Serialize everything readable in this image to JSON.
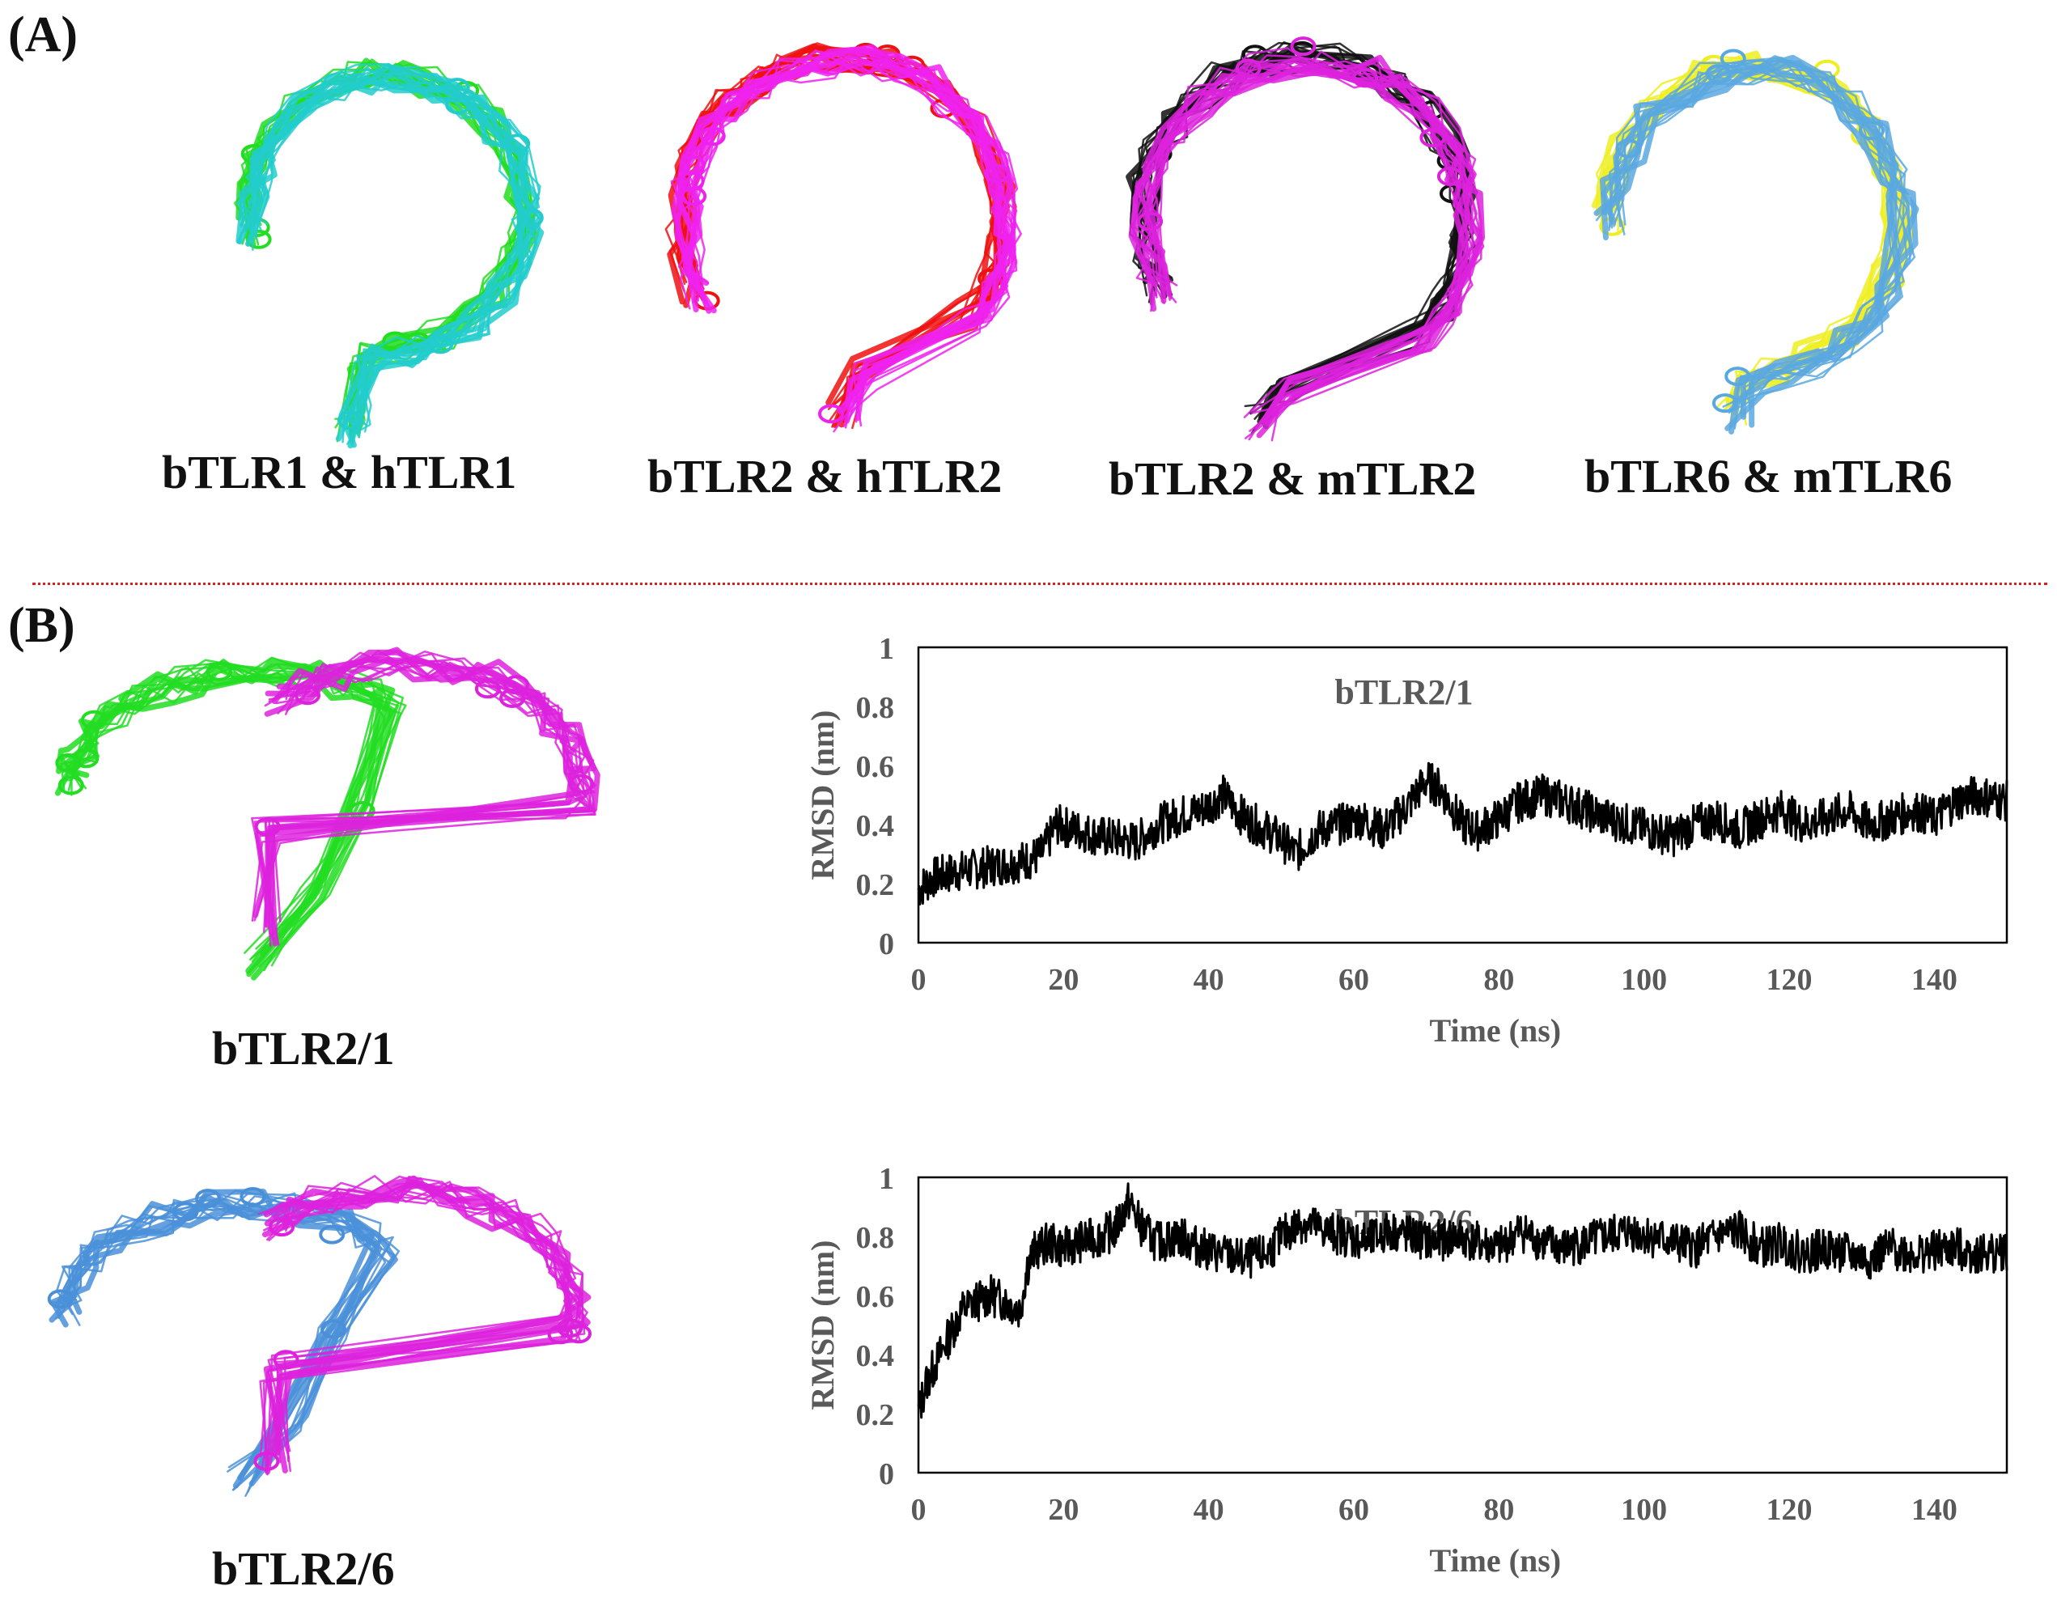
{
  "panels": {
    "a_label": "(A)",
    "b_label": "(B)"
  },
  "panel_a": {
    "structures": [
      {
        "label": "bTLR1 & hTLR1",
        "colors": [
          "#22dd22",
          "#22cccc"
        ]
      },
      {
        "label": "bTLR2 & hTLR2",
        "colors": [
          "#ee1111",
          "#ee22ee"
        ]
      },
      {
        "label": "bTLR2 & mTLR2",
        "colors": [
          "#111111",
          "#dd22dd"
        ]
      },
      {
        "label": "bTLR6 & mTLR6",
        "colors": [
          "#eeee22",
          "#5aa8e0"
        ]
      }
    ]
  },
  "panel_b": {
    "complexes": [
      {
        "label": "bTLR2/1",
        "colors": [
          "#22dd22",
          "#dd22dd"
        ]
      },
      {
        "label": "bTLR2/6",
        "colors": [
          "#4a90d9",
          "#dd22dd"
        ]
      }
    ]
  },
  "chart_data": [
    {
      "type": "line",
      "title": "bTLR2/1",
      "xlabel": "Time (ns)",
      "ylabel": "RMSD (nm)",
      "xlim": [
        0,
        150
      ],
      "ylim": [
        0,
        1
      ],
      "xticks": [
        0,
        20,
        40,
        60,
        80,
        100,
        120,
        140
      ],
      "yticks": [
        0,
        0.2,
        0.4,
        0.6,
        0.8,
        1
      ],
      "series": [
        {
          "color": "#000000",
          "x": [
            0,
            2,
            5,
            8,
            10,
            13,
            15,
            17,
            19,
            22,
            25,
            28,
            30,
            33,
            36,
            39,
            42,
            45,
            48,
            50,
            52,
            55,
            58,
            61,
            64,
            67,
            70,
            72,
            75,
            77,
            80,
            83,
            86,
            89,
            92,
            95,
            98,
            101,
            104,
            107,
            110,
            113,
            116,
            119,
            122,
            125,
            128,
            131,
            134,
            137,
            140,
            143,
            146,
            150
          ],
          "y": [
            0.18,
            0.22,
            0.24,
            0.25,
            0.26,
            0.27,
            0.28,
            0.3,
            0.4,
            0.38,
            0.36,
            0.35,
            0.34,
            0.4,
            0.43,
            0.45,
            0.5,
            0.42,
            0.38,
            0.35,
            0.3,
            0.38,
            0.4,
            0.42,
            0.38,
            0.45,
            0.55,
            0.52,
            0.4,
            0.38,
            0.42,
            0.48,
            0.5,
            0.48,
            0.45,
            0.42,
            0.4,
            0.38,
            0.36,
            0.4,
            0.42,
            0.38,
            0.42,
            0.45,
            0.4,
            0.42,
            0.45,
            0.4,
            0.42,
            0.45,
            0.42,
            0.48,
            0.5,
            0.48
          ]
        }
      ]
    },
    {
      "type": "line",
      "title": "bTLR2/6",
      "xlabel": "Time (ns)",
      "ylabel": "RMSD (nm)",
      "xlim": [
        0,
        150
      ],
      "ylim": [
        0,
        1
      ],
      "xticks": [
        0,
        20,
        40,
        60,
        80,
        100,
        120,
        140
      ],
      "yticks": [
        0,
        0.2,
        0.4,
        0.6,
        0.8,
        1
      ],
      "series": [
        {
          "color": "#000000",
          "x": [
            0,
            1,
            2,
            3,
            4,
            5,
            6,
            8,
            10,
            12,
            14,
            15,
            16,
            18,
            20,
            22,
            25,
            27,
            29,
            31,
            33,
            36,
            39,
            42,
            45,
            48,
            50,
            53,
            56,
            59,
            62,
            65,
            68,
            71,
            74,
            77,
            80,
            83,
            86,
            89,
            92,
            95,
            98,
            101,
            104,
            107,
            110,
            113,
            116,
            119,
            122,
            125,
            128,
            131,
            134,
            137,
            140,
            143,
            146,
            150
          ],
          "y": [
            0.2,
            0.3,
            0.35,
            0.4,
            0.45,
            0.5,
            0.55,
            0.58,
            0.6,
            0.58,
            0.55,
            0.7,
            0.75,
            0.78,
            0.76,
            0.78,
            0.8,
            0.82,
            0.92,
            0.82,
            0.78,
            0.8,
            0.76,
            0.74,
            0.72,
            0.74,
            0.8,
            0.85,
            0.82,
            0.8,
            0.78,
            0.82,
            0.8,
            0.78,
            0.8,
            0.78,
            0.76,
            0.82,
            0.78,
            0.76,
            0.78,
            0.8,
            0.82,
            0.8,
            0.78,
            0.76,
            0.8,
            0.82,
            0.76,
            0.78,
            0.74,
            0.76,
            0.74,
            0.72,
            0.76,
            0.74,
            0.75,
            0.76,
            0.74,
            0.75
          ]
        }
      ]
    }
  ]
}
